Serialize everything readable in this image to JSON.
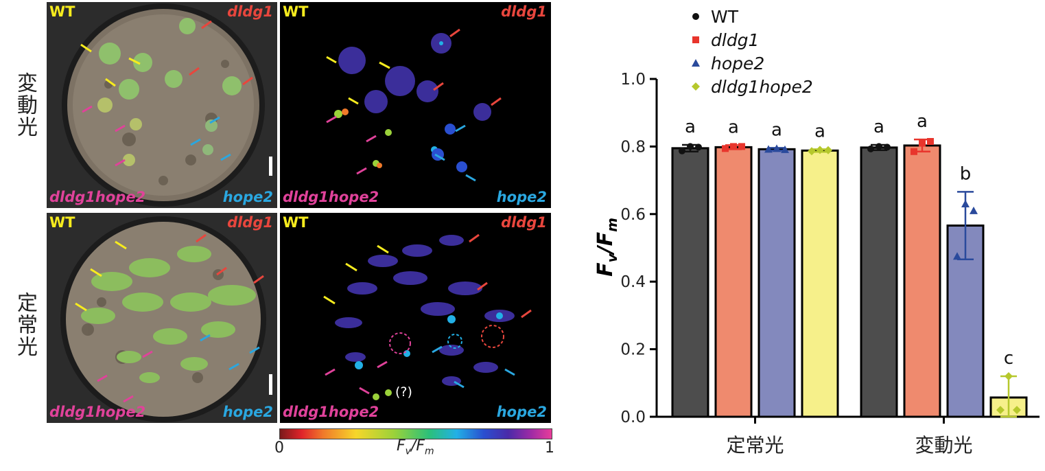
{
  "row_labels": {
    "top": "変動光",
    "bottom": "定常光"
  },
  "panel_labels": {
    "wt": "WT",
    "dldg1": "dldg1",
    "dldg1hope2": "dldg1hope2",
    "hope2": "hope2"
  },
  "question_mark": "(?)",
  "colorbar": {
    "min": "0",
    "max": "1",
    "title_main": "F",
    "title_sub1": "v",
    "title_sep": "/F",
    "title_sub2": "m"
  },
  "colors": {
    "wt": "#4d4d4d",
    "dldg1": "#ef8a6e",
    "hope2": "#8389bd",
    "dldg1hope2": "#f6f08a",
    "wt_marker": "#111111",
    "dldg1_marker": "#e8352c",
    "hope2_marker": "#2a4a9c",
    "dldg1hope2_marker": "#b6c82c"
  },
  "chart_data": {
    "type": "bar",
    "categories": [
      "定常光",
      "変動光"
    ],
    "ylabel_main": "F",
    "ylabel_sub1": "v",
    "ylabel_sep": "/F",
    "ylabel_sub2": "m",
    "ylim": [
      0,
      1.0
    ],
    "yticks": [
      "0.0",
      "0.2",
      "0.4",
      "0.6",
      "0.8",
      "1.0"
    ],
    "series": [
      {
        "name": "WT",
        "key": "wt",
        "values": [
          0.795,
          0.797
        ],
        "errors": [
          0.01,
          0.008
        ],
        "points": [
          [
            0.787,
            0.8,
            0.798
          ],
          [
            0.793,
            0.8,
            0.798
          ]
        ],
        "letters": [
          "a",
          "a"
        ]
      },
      {
        "name": "dldg1",
        "key": "dldg1",
        "values": [
          0.798,
          0.803
        ],
        "errors": [
          0.006,
          0.018
        ],
        "points": [
          [
            0.794,
            0.8,
            0.8
          ],
          [
            0.785,
            0.81,
            0.815
          ]
        ],
        "letters": [
          "a",
          "a"
        ]
      },
      {
        "name": "hope2",
        "key": "hope2",
        "values": [
          0.792,
          0.566
        ],
        "errors": [
          0.004,
          0.1
        ],
        "points": [
          [
            0.792,
            0.794,
            0.791
          ],
          [
            0.475,
            0.63,
            0.61
          ]
        ],
        "letters": [
          "a",
          "b"
        ]
      },
      {
        "name": "dldg1hope2",
        "key": "dldg1hope2",
        "values": [
          0.788,
          0.057
        ],
        "errors": [
          0.004,
          0.063
        ],
        "points": [
          [
            0.786,
            0.79,
            0.789
          ],
          [
            0.02,
            0.12,
            0.02
          ]
        ],
        "letters": [
          "a",
          "c"
        ]
      }
    ],
    "legend": [
      "WT",
      "dldg1",
      "hope2",
      "dldg1hope2"
    ]
  }
}
